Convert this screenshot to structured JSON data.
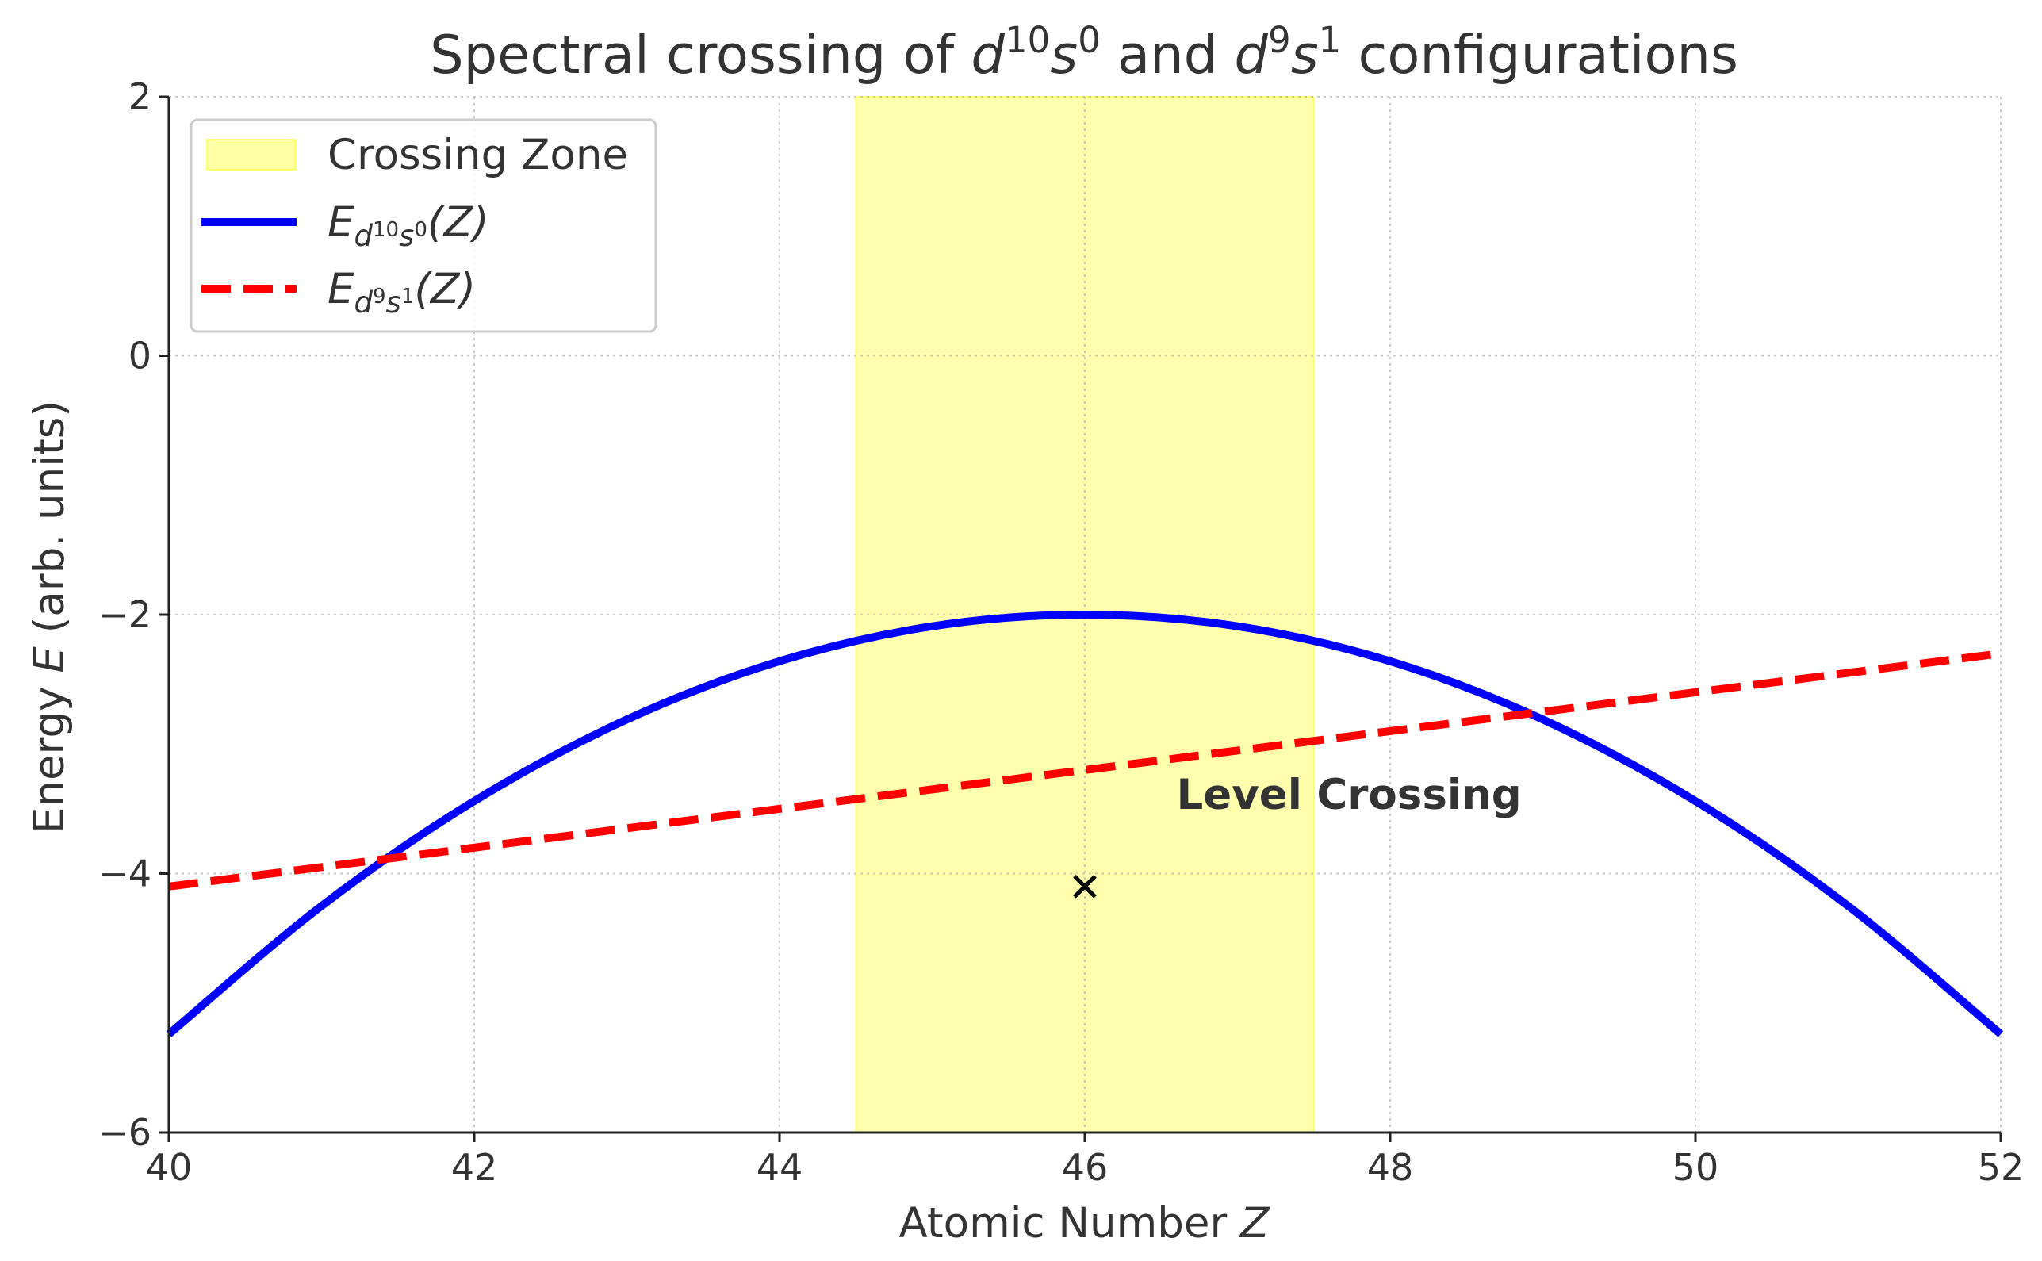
{
  "chart_data": {
    "type": "line",
    "title": {
      "prefix": "Spectral crossing of ",
      "cfg1": {
        "d": "d",
        "d_exp": "10",
        "s": "s",
        "s_exp": "0"
      },
      "middle": " and ",
      "cfg2": {
        "d": "d",
        "d_exp": "9",
        "s": "s",
        "s_exp": "1"
      },
      "suffix": " configurations"
    },
    "xlabel": {
      "text": "Atomic Number ",
      "var": "Z"
    },
    "ylabel": {
      "text": "Energy ",
      "var": "E",
      "unit": " (arb. units)"
    },
    "xlim": [
      40,
      52
    ],
    "ylim": [
      -6,
      2
    ],
    "xticks": [
      40,
      42,
      44,
      46,
      48,
      50,
      52
    ],
    "yticks": [
      2,
      0,
      -2,
      -4,
      -6
    ],
    "xtick_labels": [
      "40",
      "42",
      "44",
      "46",
      "48",
      "50",
      "52"
    ],
    "ytick_labels": [
      "2",
      "0",
      "−2",
      "−4",
      "−6"
    ],
    "grid": true,
    "legend_position": "upper-left",
    "shaded_region": {
      "name": "Crossing Zone",
      "x_start": 44.5,
      "x_end": 47.5,
      "color": "#ffff00"
    },
    "series": [
      {
        "name": {
          "E": "E",
          "sub": "d",
          "sub_exp1": "10",
          "sub_mid": "s",
          "sub_exp2": "0",
          "arg": "(Z)"
        },
        "style": "solid",
        "color": "#0000ff",
        "x": [
          40,
          41,
          42,
          43,
          44,
          45,
          46,
          47,
          48,
          49,
          50,
          51,
          52
        ],
        "y": [
          -5.24,
          -4.25,
          -3.44,
          -2.81,
          -2.36,
          -2.09,
          -2.0,
          -2.09,
          -2.36,
          -2.81,
          -3.44,
          -4.25,
          -5.24
        ]
      },
      {
        "name": {
          "E": "E",
          "sub": "d",
          "sub_exp1": "9",
          "sub_mid": "s",
          "sub_exp2": "1",
          "arg": "(Z)"
        },
        "style": "dashed",
        "color": "#ff0000",
        "x": [
          40,
          52
        ],
        "y": [
          -4.1,
          -2.3
        ]
      }
    ],
    "annotation": {
      "text": "Level Crossing",
      "x": 46.6,
      "y": -3.5
    },
    "marker": {
      "symbol": "×",
      "x": 46.0,
      "y": -4.1,
      "color": "#000000"
    }
  }
}
